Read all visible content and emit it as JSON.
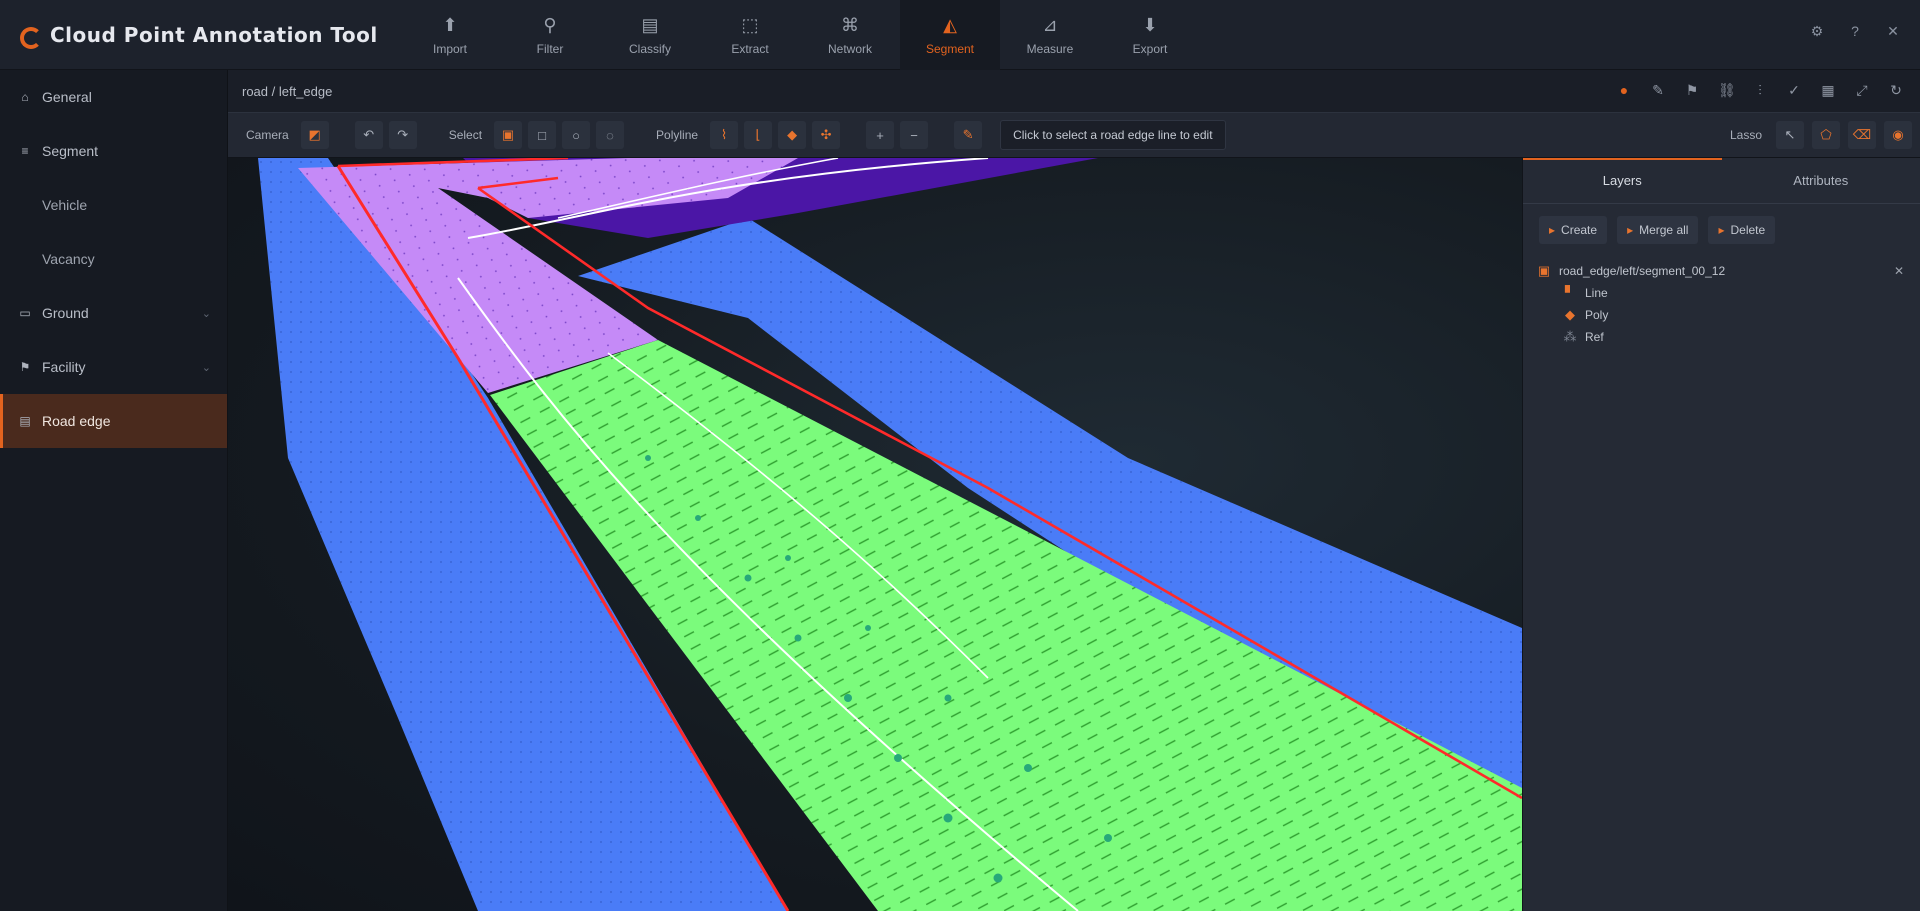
{
  "app": {
    "title": "Cloud Point Annotation Tool"
  },
  "nav": [
    {
      "label": "Import",
      "icon": "import-icon"
    },
    {
      "label": "Filter",
      "icon": "filter-icon"
    },
    {
      "label": "Classify",
      "icon": "classify-icon"
    },
    {
      "label": "Extract",
      "icon": "extract-icon"
    },
    {
      "label": "Network",
      "icon": "network-icon"
    },
    {
      "label": "Segment",
      "icon": "segment-icon",
      "active": true
    },
    {
      "label": "Measure",
      "icon": "measure-icon"
    },
    {
      "label": "Export",
      "icon": "export-icon"
    }
  ],
  "header_tools": [
    "settings-icon",
    "help-icon",
    "close-icon"
  ],
  "sidebar": {
    "items": [
      {
        "label": "General",
        "icon": "home-icon"
      },
      {
        "label": "Segment",
        "icon": "layers-icon"
      },
      {
        "label": "Vehicle",
        "sub": true
      },
      {
        "label": "Vacancy",
        "sub": true
      },
      {
        "label": "Ground",
        "icon": "ground-icon",
        "chev": true
      },
      {
        "label": "Facility",
        "icon": "facility-icon",
        "chev": true
      },
      {
        "label": "Road edge",
        "icon": "road-icon",
        "active": true
      }
    ]
  },
  "breadcrumb": "road / left_edge",
  "crumb_tools": [
    "pin-icon",
    "pen-icon",
    "flag-icon",
    "link-icon",
    "split-icon",
    "check-icon",
    "grid-icon",
    "expand-icon",
    "refresh-icon"
  ],
  "toolbar": {
    "view_label": "Camera",
    "mode_label": "Select",
    "draw_label": "Polyline",
    "status": "Click to select a road edge line to edit",
    "zoom_label": "Lasso"
  },
  "rpanel": {
    "tabs": [
      "Layers",
      "Attributes"
    ],
    "buttons": [
      "Create",
      "Merge all",
      "Delete"
    ],
    "tree": {
      "root": "road_edge/left/segment_00_12",
      "children": [
        "Line",
        "Poly",
        "Ref"
      ]
    }
  },
  "colors": {
    "accent": "#e2631f",
    "ground": "#7bfb7c",
    "curb": "#4a7cf7",
    "road_far": "#c58af7",
    "road_dark": "#4b16a6",
    "edge": "#ff2a2a"
  }
}
